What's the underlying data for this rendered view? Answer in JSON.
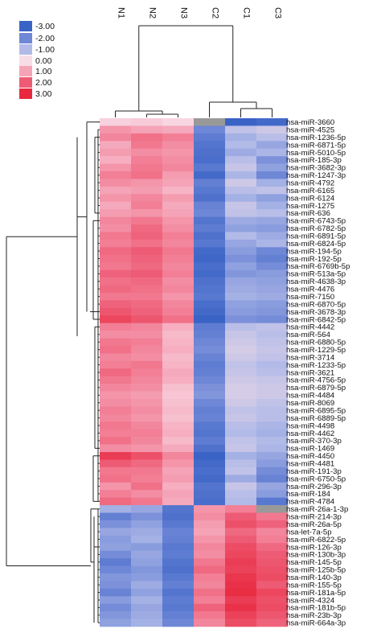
{
  "chart_data": {
    "type": "heatmap",
    "title": "",
    "xlabel": "",
    "ylabel": "",
    "columns": [
      "N1",
      "N2",
      "N3",
      "C2",
      "C1",
      "C3"
    ],
    "legend": {
      "placement": "top-left",
      "entries": [
        {
          "label": "-3.00",
          "color": "#3a63c6"
        },
        {
          "label": "-2.00",
          "color": "#6e87d6"
        },
        {
          "label": "-1.00",
          "color": "#b2bbe8"
        },
        {
          "label": "0.00",
          "color": "#f8dce6"
        },
        {
          "label": "1.00",
          "color": "#f5a3b7"
        },
        {
          "label": "2.00",
          "color": "#ee5b74"
        },
        {
          "label": "3.00",
          "color": "#e8283e"
        }
      ]
    },
    "missing_color": "#999999",
    "rows": [
      {
        "label": "hsa-miR-3660",
        "values": [
          0.2,
          0.3,
          0.1,
          null,
          -3.0,
          -2.8
        ]
      },
      {
        "label": "hsa-miR-4525",
        "values": [
          1.2,
          1.0,
          0.9,
          -2.0,
          -0.8,
          -0.6
        ]
      },
      {
        "label": "hsa-miR-1236-5p",
        "values": [
          1.4,
          1.7,
          1.5,
          -2.3,
          -1.2,
          -0.9
        ]
      },
      {
        "label": "hsa-miR-6871-5p",
        "values": [
          0.9,
          1.6,
          1.3,
          -2.5,
          -1.0,
          -1.4
        ]
      },
      {
        "label": "hsa-miR-5010-5p",
        "values": [
          1.1,
          1.3,
          1.2,
          -2.6,
          -1.3,
          -1.1
        ]
      },
      {
        "label": "hsa-miR-185-3p",
        "values": [
          0.8,
          1.5,
          1.3,
          -2.7,
          -0.9,
          -1.8
        ]
      },
      {
        "label": "hsa-miR-3682-3p",
        "values": [
          1.2,
          1.6,
          1.4,
          -2.4,
          -0.7,
          -1.5
        ]
      },
      {
        "label": "hsa-miR-1247-3p",
        "values": [
          1.5,
          1.7,
          1.1,
          -2.8,
          -1.1,
          -2.0
        ]
      },
      {
        "label": "hsa-miR-4792",
        "values": [
          1.3,
          1.2,
          1.0,
          -2.2,
          -0.6,
          -1.2
        ]
      },
      {
        "label": "hsa-miR-6165",
        "values": [
          1.0,
          1.1,
          0.7,
          -2.4,
          -0.9,
          -0.8
        ]
      },
      {
        "label": "hsa-miR-6124",
        "values": [
          1.2,
          1.4,
          1.1,
          -2.6,
          -1.2,
          -1.5
        ]
      },
      {
        "label": "hsa-miR-1275",
        "values": [
          0.9,
          1.5,
          0.9,
          -2.1,
          -0.7,
          -1.2
        ]
      },
      {
        "label": "hsa-miR-636",
        "values": [
          1.1,
          1.2,
          1.0,
          -2.0,
          -0.8,
          -0.9
        ]
      },
      {
        "label": "hsa-miR-6743-5p",
        "values": [
          1.4,
          1.6,
          1.2,
          -2.5,
          -1.3,
          -1.4
        ]
      },
      {
        "label": "hsa-miR-6782-5p",
        "values": [
          1.3,
          1.8,
          1.3,
          -2.3,
          -1.5,
          -1.6
        ]
      },
      {
        "label": "hsa-miR-6891-5p",
        "values": [
          1.6,
          1.9,
          1.5,
          -2.6,
          -1.0,
          -1.3
        ]
      },
      {
        "label": "hsa-miR-6824-5p",
        "values": [
          1.5,
          1.7,
          1.4,
          -2.4,
          -1.4,
          -1.1
        ]
      },
      {
        "label": "hsa-miR-194-5p",
        "values": [
          1.8,
          2.0,
          1.6,
          -2.8,
          -1.6,
          -2.0
        ]
      },
      {
        "label": "hsa-miR-192-5p",
        "values": [
          1.7,
          1.9,
          1.5,
          -2.9,
          -1.8,
          -2.2
        ]
      },
      {
        "label": "hsa-miR-6769b-5p",
        "values": [
          1.6,
          1.8,
          1.4,
          -2.7,
          -1.5,
          -1.9
        ]
      },
      {
        "label": "hsa-miR-513a-5p",
        "values": [
          1.9,
          2.0,
          1.5,
          -2.8,
          -1.7,
          -1.6
        ]
      },
      {
        "label": "hsa-miR-4638-3p",
        "values": [
          1.7,
          1.8,
          1.3,
          -2.6,
          -1.4,
          -1.5
        ]
      },
      {
        "label": "hsa-miR-4476",
        "values": [
          1.8,
          1.7,
          1.4,
          -2.5,
          -1.3,
          -1.4
        ]
      },
      {
        "label": "hsa-miR-7150",
        "values": [
          1.6,
          1.6,
          1.2,
          -2.4,
          -1.2,
          -1.3
        ]
      },
      {
        "label": "hsa-miR-6870-5p",
        "values": [
          1.9,
          1.8,
          1.4,
          -2.7,
          -1.5,
          -1.6
        ]
      },
      {
        "label": "hsa-miR-3678-3p",
        "values": [
          2.1,
          1.9,
          1.5,
          -2.8,
          -1.6,
          -1.7
        ]
      },
      {
        "label": "hsa-miR-6842-5p",
        "values": [
          2.4,
          2.1,
          1.7,
          -3.0,
          -1.8,
          -1.9
        ]
      },
      {
        "label": "hsa-miR-4442",
        "values": [
          1.5,
          1.4,
          0.8,
          -2.3,
          -0.9,
          -0.8
        ]
      },
      {
        "label": "hsa-miR-564",
        "values": [
          1.3,
          1.3,
          0.6,
          -2.2,
          -0.7,
          -0.9
        ]
      },
      {
        "label": "hsa-miR-6880-5p",
        "values": [
          1.6,
          1.5,
          0.7,
          -2.0,
          -0.6,
          -0.8
        ]
      },
      {
        "label": "hsa-miR-1229-5p",
        "values": [
          1.7,
          1.4,
          0.8,
          -1.9,
          -0.5,
          -0.7
        ]
      },
      {
        "label": "hsa-miR-3714",
        "values": [
          1.4,
          1.3,
          0.6,
          -2.1,
          -0.6,
          -0.8
        ]
      },
      {
        "label": "hsa-miR-1233-5p",
        "values": [
          1.5,
          1.6,
          0.7,
          -2.3,
          -0.8,
          -1.0
        ]
      },
      {
        "label": "hsa-miR-3621",
        "values": [
          1.8,
          1.5,
          0.9,
          -2.2,
          -0.7,
          -0.9
        ]
      },
      {
        "label": "hsa-miR-4756-5p",
        "values": [
          1.6,
          1.4,
          0.8,
          -2.0,
          -0.6,
          -0.7
        ]
      },
      {
        "label": "hsa-miR-6879-5p",
        "values": [
          1.4,
          1.3,
          0.5,
          -1.8,
          -0.5,
          -0.6
        ]
      },
      {
        "label": "hsa-miR-4484",
        "values": [
          1.2,
          1.1,
          0.4,
          -1.7,
          -0.5,
          -0.6
        ]
      },
      {
        "label": "hsa-miR-8069",
        "values": [
          1.3,
          1.2,
          0.5,
          -2.0,
          -0.6,
          -0.8
        ]
      },
      {
        "label": "hsa-miR-6895-5p",
        "values": [
          1.5,
          1.3,
          0.6,
          -2.2,
          -0.8,
          -0.9
        ]
      },
      {
        "label": "hsa-miR-6889-5p",
        "values": [
          1.4,
          1.2,
          0.5,
          -2.1,
          -0.7,
          -0.9
        ]
      },
      {
        "label": "hsa-miR-4498",
        "values": [
          1.6,
          1.4,
          0.7,
          -2.4,
          -0.9,
          -1.1
        ]
      },
      {
        "label": "hsa-miR-4462",
        "values": [
          1.5,
          1.5,
          0.8,
          -2.5,
          -1.0,
          -1.2
        ]
      },
      {
        "label": "hsa-miR-370-3p",
        "values": [
          1.7,
          1.4,
          0.6,
          -2.3,
          -0.8,
          -1.0
        ]
      },
      {
        "label": "hsa-miR-1469",
        "values": [
          1.3,
          1.2,
          0.9,
          -2.6,
          -0.7,
          -1.1
        ]
      },
      {
        "label": "hsa-miR-4450",
        "values": [
          2.6,
          2.2,
          1.4,
          -3.0,
          -1.2,
          -1.4
        ]
      },
      {
        "label": "hsa-miR-4481",
        "values": [
          2.0,
          1.8,
          1.2,
          -2.8,
          -0.9,
          -1.6
        ]
      },
      {
        "label": "hsa-miR-191-3p",
        "values": [
          1.6,
          1.6,
          1.0,
          -2.7,
          -0.8,
          -1.9
        ]
      },
      {
        "label": "hsa-miR-6750-5p",
        "values": [
          1.7,
          1.5,
          1.1,
          -2.8,
          -1.3,
          -2.1
        ]
      },
      {
        "label": "hsa-miR-296-3p",
        "values": [
          1.2,
          1.7,
          0.8,
          -2.5,
          -0.7,
          -1.4
        ]
      },
      {
        "label": "hsa-miR-184",
        "values": [
          1.5,
          1.3,
          1.0,
          -2.6,
          -0.9,
          -1.6
        ]
      },
      {
        "label": "hsa-miR-4784",
        "values": [
          1.8,
          1.6,
          0.9,
          -2.7,
          -1.0,
          -2.4
        ]
      },
      {
        "label": "hsa-miR-26a-1-3p",
        "values": [
          -1.2,
          -1.4,
          -2.5,
          1.2,
          1.5,
          null
        ]
      },
      {
        "label": "hsa-miR-214-3p",
        "values": [
          -2.2,
          -1.8,
          -2.6,
          1.3,
          2.0,
          1.6
        ]
      },
      {
        "label": "hsa-miR-26a-5p",
        "values": [
          -1.8,
          -1.5,
          -2.4,
          1.1,
          2.2,
          1.9
        ]
      },
      {
        "label": "hsa-let-7a-5p",
        "values": [
          -1.4,
          -1.3,
          -2.1,
          1.0,
          1.8,
          1.4
        ]
      },
      {
        "label": "hsa-miR-6822-5p",
        "values": [
          -1.6,
          -1.2,
          -2.2,
          1.2,
          2.0,
          1.5
        ]
      },
      {
        "label": "hsa-miR-126-3p",
        "values": [
          -1.5,
          -1.6,
          -2.4,
          1.4,
          2.3,
          1.8
        ]
      },
      {
        "label": "hsa-miR-130b-3p",
        "values": [
          -1.9,
          -1.4,
          -2.3,
          1.3,
          2.4,
          2.0
        ]
      },
      {
        "label": "hsa-miR-145-5p",
        "values": [
          -2.3,
          -1.5,
          -2.5,
          1.6,
          2.6,
          2.1
        ]
      },
      {
        "label": "hsa-miR-125b-5p",
        "values": [
          -2.0,
          -1.7,
          -2.6,
          1.8,
          2.5,
          2.2
        ]
      },
      {
        "label": "hsa-miR-140-3p",
        "values": [
          -1.7,
          -1.6,
          -2.4,
          1.5,
          2.7,
          2.3
        ]
      },
      {
        "label": "hsa-miR-155-5p",
        "values": [
          -1.8,
          -1.3,
          -2.2,
          1.4,
          2.8,
          2.0
        ]
      },
      {
        "label": "hsa-miR-181a-5p",
        "values": [
          -2.1,
          -1.5,
          -2.5,
          1.7,
          2.9,
          2.4
        ]
      },
      {
        "label": "hsa-miR-4324",
        "values": [
          -1.6,
          -1.2,
          -2.3,
          1.5,
          2.6,
          2.2
        ]
      },
      {
        "label": "hsa-miR-181b-5p",
        "values": [
          -1.9,
          -1.4,
          -2.4,
          1.9,
          2.8,
          2.3
        ]
      },
      {
        "label": "hsa-miR-23b-3p",
        "values": [
          -1.7,
          -1.3,
          -2.2,
          1.6,
          2.5,
          2.1
        ]
      },
      {
        "label": "hsa-miR-664a-3p",
        "values": [
          -1.5,
          -1.2,
          -2.0,
          1.4,
          2.3,
          1.9
        ]
      }
    ]
  }
}
